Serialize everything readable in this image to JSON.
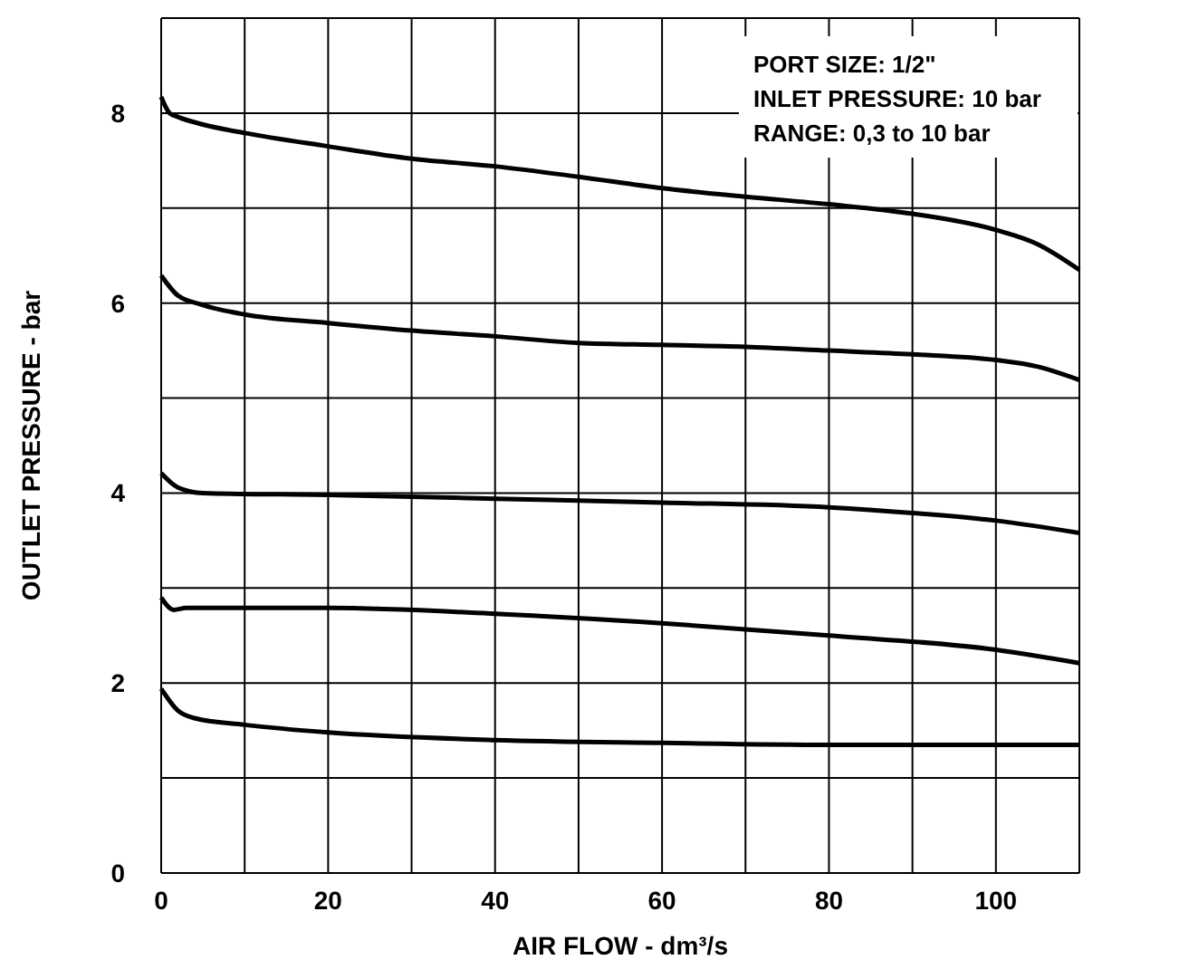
{
  "chart_data": {
    "type": "line",
    "xlabel": "AIR FLOW - dm³/s",
    "ylabel": "OUTLET PRESSURE  - bar",
    "annotations": [
      "PORT SIZE: 1/2\"",
      "INLET PRESSURE: 10 bar",
      "RANGE: 0,3 to 10 bar"
    ],
    "xlim": [
      0,
      110
    ],
    "xticks": [
      0,
      {
        "value": 10,
        "label": null
      },
      20,
      {
        "value": 30,
        "label": null
      },
      40,
      {
        "value": 50,
        "label": null
      },
      60,
      {
        "value": 70,
        "label": null
      },
      80,
      {
        "value": 90,
        "label": null
      },
      100,
      {
        "value": 110,
        "label": null
      }
    ],
    "ylim": [
      0,
      9
    ],
    "yticks": [
      0,
      {
        "value": 1,
        "label": null
      },
      2,
      {
        "value": 3,
        "label": null
      },
      4,
      {
        "value": 5,
        "label": null
      },
      6,
      {
        "value": 7,
        "label": null
      },
      8,
      {
        "value": 9,
        "label": null
      }
    ],
    "grid": true,
    "marker": "none",
    "line_style": "solid",
    "series": [
      {
        "color": "#000000",
        "x": [
          0,
          1,
          2,
          5,
          10,
          20,
          30,
          40,
          50,
          60,
          70,
          80,
          90,
          100,
          105,
          110
        ],
        "values": [
          8.17,
          8.0,
          7.96,
          7.88,
          7.79,
          7.65,
          7.52,
          7.44,
          7.33,
          7.21,
          7.12,
          7.04,
          6.94,
          6.77,
          6.62,
          6.35
        ]
      },
      {
        "color": "#000000",
        "x": [
          0,
          2,
          5,
          10,
          20,
          30,
          40,
          50,
          60,
          70,
          80,
          90,
          100,
          105,
          110
        ],
        "values": [
          6.29,
          6.08,
          5.98,
          5.88,
          5.79,
          5.71,
          5.65,
          5.58,
          5.56,
          5.54,
          5.5,
          5.46,
          5.4,
          5.33,
          5.19
        ]
      },
      {
        "color": "#000000",
        "x": [
          0,
          2,
          5,
          20,
          40,
          60,
          80,
          90,
          100,
          110
        ],
        "values": [
          4.21,
          4.06,
          4.0,
          3.98,
          3.94,
          3.9,
          3.85,
          3.79,
          3.71,
          3.58
        ]
      },
      {
        "color": "#000000",
        "x": [
          0,
          1.5,
          3,
          20,
          40,
          60,
          80,
          100,
          110
        ],
        "values": [
          2.9,
          2.77,
          2.79,
          2.79,
          2.73,
          2.63,
          2.5,
          2.35,
          2.21
        ]
      },
      {
        "color": "#000000",
        "x": [
          0,
          2,
          4,
          10,
          20,
          40,
          60,
          80,
          100,
          110
        ],
        "values": [
          1.94,
          1.71,
          1.63,
          1.56,
          1.48,
          1.4,
          1.37,
          1.35,
          1.35,
          1.35
        ]
      }
    ]
  }
}
